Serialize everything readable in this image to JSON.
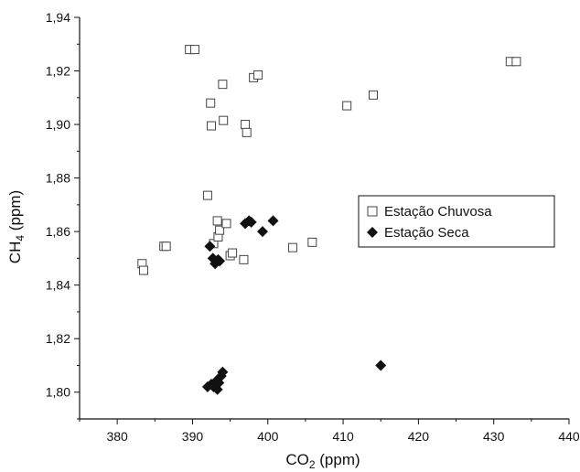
{
  "chart_data": {
    "type": "scatter",
    "title": "",
    "xlabel": {
      "main": "CO",
      "sub": "2",
      "suffix": " (ppm)"
    },
    "ylabel": {
      "main": "CH",
      "sub": "4",
      "suffix": " (ppm)"
    },
    "xlim": [
      375,
      440
    ],
    "ylim": [
      1.79,
      1.94
    ],
    "x_ticks": [
      380,
      390,
      400,
      410,
      420,
      430,
      440
    ],
    "y_ticks": [
      1.8,
      1.82,
      1.84,
      1.86,
      1.88,
      1.9,
      1.92,
      1.94
    ],
    "x_tick_labels": [
      "380",
      "390",
      "400",
      "410",
      "420",
      "430",
      "440"
    ],
    "y_tick_labels": [
      "1,80",
      "1,82",
      "1,84",
      "1,86",
      "1,88",
      "1,90",
      "1,92",
      "1,94"
    ],
    "grid": false,
    "legend_placement": "right-center",
    "series": [
      {
        "name": "Estação Chuvosa",
        "marker": "open-square",
        "color": "#444444",
        "points": [
          [
            383.3,
            1.848
          ],
          [
            383.5,
            1.8455
          ],
          [
            386.2,
            1.8545
          ],
          [
            386.5,
            1.8545
          ],
          [
            389.6,
            1.928
          ],
          [
            390.3,
            1.928
          ],
          [
            392.0,
            1.8735
          ],
          [
            392.4,
            1.908
          ],
          [
            392.5,
            1.8995
          ],
          [
            392.8,
            1.8555
          ],
          [
            393.3,
            1.864
          ],
          [
            393.4,
            1.858
          ],
          [
            393.6,
            1.8605
          ],
          [
            394.0,
            1.915
          ],
          [
            394.1,
            1.9015
          ],
          [
            394.5,
            1.863
          ],
          [
            395.0,
            1.851
          ],
          [
            395.3,
            1.852
          ],
          [
            396.8,
            1.8495
          ],
          [
            397.0,
            1.9
          ],
          [
            397.2,
            1.897
          ],
          [
            398.1,
            1.9175
          ],
          [
            398.7,
            1.9185
          ],
          [
            403.3,
            1.854
          ],
          [
            405.9,
            1.856
          ],
          [
            410.5,
            1.907
          ],
          [
            414.0,
            1.911
          ],
          [
            432.2,
            1.9235
          ],
          [
            433.0,
            1.9235
          ]
        ]
      },
      {
        "name": "Estação Seca",
        "marker": "filled-diamond",
        "color": "#111111",
        "points": [
          [
            392.0,
            1.802
          ],
          [
            392.3,
            1.8545
          ],
          [
            392.5,
            1.803
          ],
          [
            392.7,
            1.85
          ],
          [
            392.8,
            1.802
          ],
          [
            393.0,
            1.848
          ],
          [
            393.1,
            1.804
          ],
          [
            393.2,
            1.849
          ],
          [
            393.3,
            1.801
          ],
          [
            393.4,
            1.8495
          ],
          [
            393.5,
            1.8035
          ],
          [
            393.6,
            1.849
          ],
          [
            393.8,
            1.806
          ],
          [
            394.0,
            1.8075
          ],
          [
            397.0,
            1.863
          ],
          [
            397.5,
            1.864
          ],
          [
            397.8,
            1.8635
          ],
          [
            399.3,
            1.86
          ],
          [
            400.7,
            1.864
          ],
          [
            415.0,
            1.81
          ]
        ]
      }
    ]
  }
}
